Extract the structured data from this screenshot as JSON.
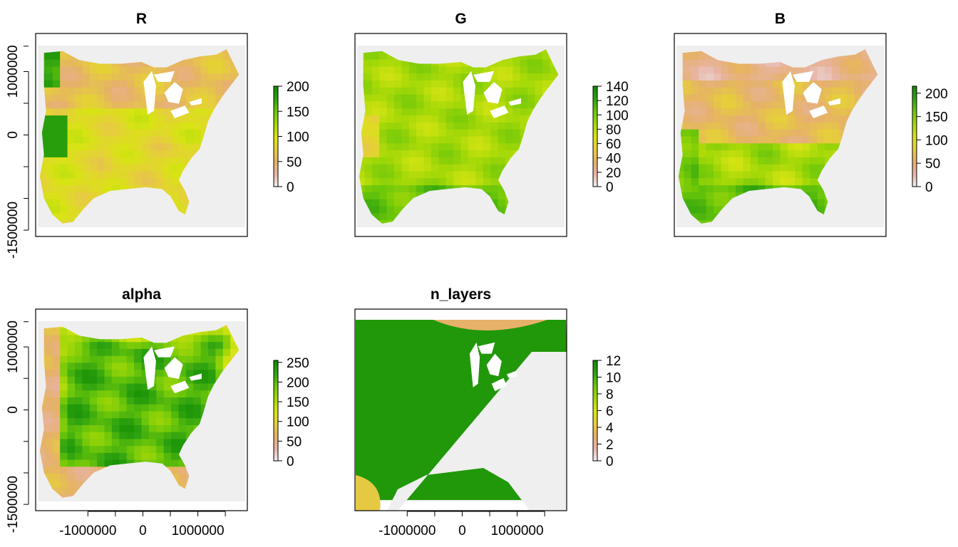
{
  "chart_data": [
    {
      "type": "heatmap",
      "title": "R",
      "xticks": [],
      "yticks": [
        "-1500000",
        "0",
        "1000000"
      ],
      "xlim": [
        -1950000,
        1900000
      ],
      "ylim": [
        -1600000,
        1600000
      ],
      "legend": {
        "ticks": [
          0,
          50,
          100,
          150,
          200
        ],
        "max": 200,
        "placement": "right"
      },
      "map": "R"
    },
    {
      "type": "heatmap",
      "title": "G",
      "xticks": [],
      "yticks": [],
      "xlim": [
        -1950000,
        1900000
      ],
      "ylim": [
        -1600000,
        1600000
      ],
      "legend": {
        "ticks": [
          0,
          20,
          40,
          60,
          80,
          100,
          120,
          140
        ],
        "max": 140,
        "placement": "right"
      },
      "map": "G"
    },
    {
      "type": "heatmap",
      "title": "B",
      "xticks": [],
      "yticks": [],
      "xlim": [
        -1950000,
        1900000
      ],
      "ylim": [
        -1600000,
        1600000
      ],
      "legend": {
        "ticks": [
          0,
          50,
          100,
          150,
          200
        ],
        "max": 215,
        "placement": "right",
        "truncated_labels": [
          "0",
          "50",
          "100",
          "150",
          "200"
        ]
      },
      "map": "B"
    },
    {
      "type": "heatmap",
      "title": "alpha",
      "xticks": [
        "-1000000",
        "0",
        "1000000"
      ],
      "yticks": [
        "-1500000",
        "0",
        "1000000"
      ],
      "xlim": [
        -1950000,
        1900000
      ],
      "ylim": [
        -1600000,
        1600000
      ],
      "legend": {
        "ticks": [
          0,
          50,
          100,
          150,
          200,
          250
        ],
        "max": 255,
        "placement": "right"
      },
      "map": "alpha"
    },
    {
      "type": "heatmap",
      "title": "n_layers",
      "xticks": [
        "-1000000",
        "0",
        "1000000"
      ],
      "yticks": [],
      "xlim": [
        -1950000,
        1900000
      ],
      "ylim": [
        -1600000,
        1600000
      ],
      "legend": {
        "ticks": [
          0,
          2,
          4,
          6,
          8,
          10,
          12
        ],
        "max": 12,
        "placement": "right"
      },
      "map": "n_layers"
    }
  ],
  "colors": {
    "background_na": "#efefef",
    "ramp": [
      "#f2f2f2",
      "#e8b4a6",
      "#e6b168",
      "#e6cf3a",
      "#d7e413",
      "#a5d808",
      "#6dc709",
      "#2fa310",
      "#0f8a00"
    ],
    "water": "#ffffff",
    "frame": "#000000"
  }
}
